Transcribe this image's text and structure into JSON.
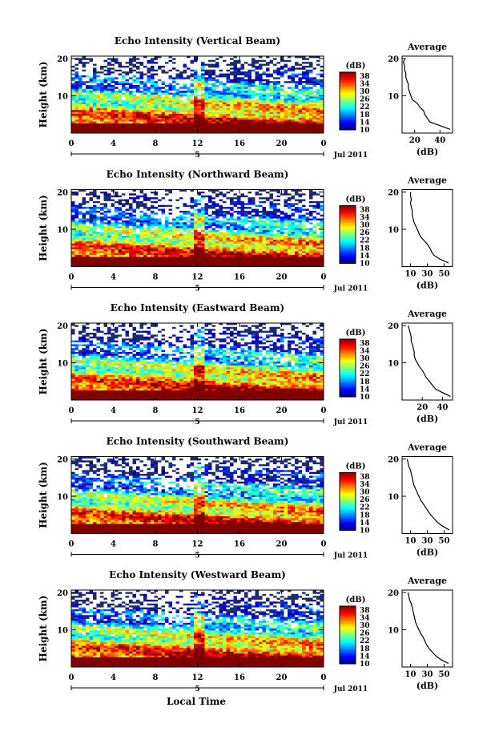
{
  "figure": {
    "xlabel": "Local Time",
    "date_label": "Jul 2011",
    "day_label": "5",
    "ylabel": "Height (km)",
    "avg_title": "Average",
    "avg_xlabel": "(dB)",
    "cbar_unit": "(dB)"
  },
  "chart_data": [
    {
      "type": "heatmap",
      "title": "Echo Intensity (Vertical Beam)",
      "x_ticks": [
        "0",
        "4",
        "8",
        "12",
        "16",
        "20",
        "0"
      ],
      "y_ticks": [
        "20",
        "10"
      ],
      "xlim": [
        0,
        24
      ],
      "ylim": [
        0,
        20
      ],
      "colorbar_ticks": [
        "38",
        "34",
        "30",
        "26",
        "22",
        "18",
        "14",
        "10"
      ],
      "colorbar_range": [
        10,
        40
      ],
      "profile": {
        "x_ticks": [
          "20",
          "40"
        ],
        "xlim": [
          10,
          50
        ],
        "height": [
          1,
          2,
          3,
          4,
          5,
          6,
          7,
          8,
          9,
          10,
          11,
          12,
          13,
          14,
          15,
          16,
          17,
          18,
          19,
          20
        ],
        "value": [
          48,
          40,
          32,
          30,
          28,
          27,
          24,
          22,
          18,
          17,
          16,
          15,
          15,
          14,
          13,
          13,
          12,
          12,
          11,
          12
        ]
      }
    },
    {
      "type": "heatmap",
      "title": "Echo Intensity (Northward Beam)",
      "x_ticks": [
        "0",
        "4",
        "8",
        "12",
        "16",
        "20",
        "0"
      ],
      "y_ticks": [
        "20",
        "10"
      ],
      "xlim": [
        0,
        24
      ],
      "ylim": [
        0,
        20
      ],
      "colorbar_ticks": [
        "38",
        "34",
        "30",
        "26",
        "22",
        "18",
        "14",
        "10"
      ],
      "colorbar_range": [
        10,
        40
      ],
      "profile": {
        "x_ticks": [
          "10",
          "30",
          "50"
        ],
        "xlim": [
          0,
          60
        ],
        "height": [
          1,
          2,
          3,
          4,
          5,
          6,
          7,
          8,
          9,
          10,
          11,
          12,
          13,
          14,
          15,
          16,
          17,
          18,
          19,
          20
        ],
        "value": [
          55,
          45,
          38,
          35,
          33,
          30,
          26,
          22,
          20,
          18,
          16,
          14,
          13,
          12,
          12,
          11,
          10,
          11,
          10,
          10
        ]
      }
    },
    {
      "type": "heatmap",
      "title": "Echo Intensity (Eastward Beam)",
      "x_ticks": [
        "0",
        "4",
        "8",
        "12",
        "16",
        "20",
        "0"
      ],
      "y_ticks": [
        "20",
        "10"
      ],
      "xlim": [
        0,
        24
      ],
      "ylim": [
        0,
        20
      ],
      "colorbar_ticks": [
        "38",
        "34",
        "30",
        "26",
        "22",
        "18",
        "14",
        "10"
      ],
      "colorbar_range": [
        10,
        40
      ],
      "profile": {
        "x_ticks": [
          "20",
          "40"
        ],
        "xlim": [
          0,
          50
        ],
        "height": [
          1,
          2,
          3,
          4,
          5,
          6,
          7,
          8,
          9,
          10,
          11,
          12,
          13,
          14,
          15,
          16,
          17,
          18,
          19,
          20
        ],
        "value": [
          48,
          40,
          33,
          30,
          27,
          24,
          22,
          20,
          17,
          15,
          13,
          12,
          12,
          11,
          10,
          9,
          9,
          8,
          7,
          6
        ]
      }
    },
    {
      "type": "heatmap",
      "title": "Echo Intensity (Southward Beam)",
      "x_ticks": [
        "0",
        "4",
        "8",
        "12",
        "16",
        "20",
        "0"
      ],
      "y_ticks": [
        "20",
        "10"
      ],
      "xlim": [
        0,
        24
      ],
      "ylim": [
        0,
        20
      ],
      "colorbar_ticks": [
        "38",
        "34",
        "30",
        "26",
        "22",
        "18",
        "14",
        "10"
      ],
      "colorbar_range": [
        10,
        40
      ],
      "profile": {
        "x_ticks": [
          "10",
          "30",
          "50"
        ],
        "xlim": [
          0,
          60
        ],
        "height": [
          1,
          2,
          3,
          4,
          5,
          6,
          7,
          8,
          9,
          10,
          11,
          12,
          13,
          14,
          15,
          16,
          17,
          18,
          19,
          20
        ],
        "value": [
          56,
          48,
          42,
          38,
          34,
          31,
          28,
          25,
          22,
          20,
          18,
          16,
          14,
          13,
          12,
          11,
          10,
          8,
          7,
          6
        ]
      }
    },
    {
      "type": "heatmap",
      "title": "Echo Intensity (Westward Beam)",
      "x_ticks": [
        "0",
        "4",
        "8",
        "12",
        "16",
        "20",
        "0"
      ],
      "y_ticks": [
        "20",
        "10"
      ],
      "xlim": [
        0,
        24
      ],
      "ylim": [
        0,
        20
      ],
      "colorbar_ticks": [
        "38",
        "34",
        "30",
        "26",
        "22",
        "18",
        "14",
        "10"
      ],
      "colorbar_range": [
        10,
        40
      ],
      "profile": {
        "x_ticks": [
          "10",
          "30",
          "50"
        ],
        "xlim": [
          0,
          60
        ],
        "height": [
          1,
          2,
          3,
          4,
          5,
          6,
          7,
          8,
          9,
          10,
          11,
          12,
          13,
          14,
          15,
          16,
          17,
          18,
          19,
          20
        ],
        "value": [
          55,
          46,
          40,
          36,
          32,
          29,
          27,
          25,
          22,
          20,
          18,
          16,
          15,
          14,
          13,
          12,
          11,
          9,
          8,
          7
        ]
      }
    }
  ]
}
